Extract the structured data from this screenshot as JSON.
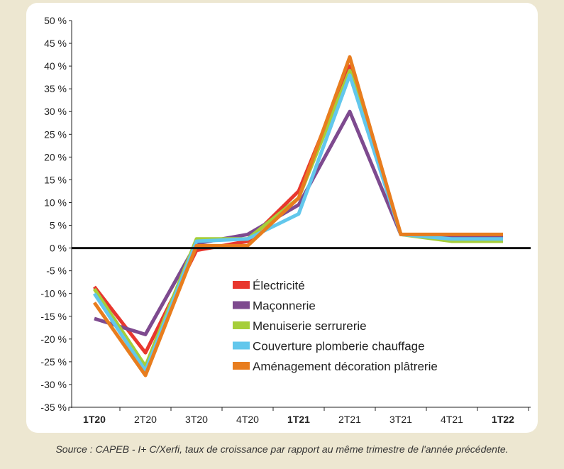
{
  "chart_data": {
    "type": "line",
    "title": "",
    "xlabel": "",
    "ylabel": "",
    "ylim": [
      -35,
      50
    ],
    "y_ticks": [
      "50 %",
      "45 %",
      "40 %",
      "35 %",
      "30 %",
      "25 %",
      "20 %",
      "15 %",
      "10 %",
      "5 %",
      "0 %",
      "-5 %",
      "-10 %",
      "-15 %",
      "-20 %",
      "-25 %",
      "-30 %",
      "-35 %"
    ],
    "y_tick_values": [
      50,
      45,
      40,
      35,
      30,
      25,
      20,
      15,
      10,
      5,
      0,
      -5,
      -10,
      -15,
      -20,
      -25,
      -30,
      -35
    ],
    "categories": [
      "1T20",
      "2T20",
      "3T20",
      "4T20",
      "1T21",
      "2T21",
      "3T21",
      "4T21",
      "1T22"
    ],
    "bold_categories": [
      "1T20",
      "1T21",
      "1T22"
    ],
    "series": [
      {
        "name": "Électricité",
        "color": "#e8372e",
        "values": [
          -8.5,
          -23,
          -0.5,
          1.5,
          12.5,
          40,
          3,
          2.5,
          2.5
        ]
      },
      {
        "name": "Maçonnerie",
        "color": "#7e4a8f",
        "values": [
          -15.5,
          -19,
          1,
          3,
          9.5,
          30,
          3,
          2.5,
          2.5
        ]
      },
      {
        "name": "Menuiserie serrurerie",
        "color": "#a6ce39",
        "values": [
          -9,
          -26,
          2,
          2,
          11,
          39,
          3,
          1.5,
          1.5
        ]
      },
      {
        "name": "Couverture plomberie chauffage",
        "color": "#62c7ec",
        "values": [
          -10,
          -27,
          1.5,
          2,
          7.5,
          38,
          3,
          2,
          2
        ]
      },
      {
        "name": "Aménagement décoration plâtrerie",
        "color": "#e87d1e",
        "values": [
          -12,
          -28,
          0.5,
          0.5,
          11,
          42,
          3,
          3,
          3
        ]
      }
    ]
  },
  "source_text": "Source : CAPEB - I+ C/Xerfi, taux de croissance par rapport au même trimestre de l'année précédente."
}
